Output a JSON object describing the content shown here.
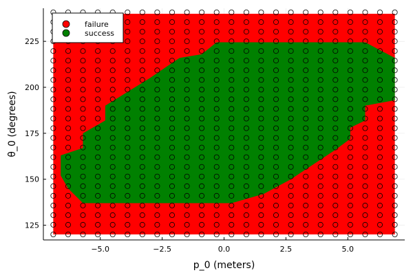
{
  "chart_data": {
    "type": "scatter",
    "title": "",
    "xlabel": "p_0 (meters)",
    "ylabel": "θ_0 (degrees)",
    "xlim": [
      -7.3,
      7.3
    ],
    "ylim": [
      117,
      243
    ],
    "x_ticks": [
      -5.0,
      -2.5,
      0.0,
      2.5,
      5.0
    ],
    "x_tick_labels": [
      "−5.0",
      "−2.5",
      "0.0",
      "2.5",
      "5.0"
    ],
    "y_ticks": [
      125,
      150,
      175,
      200,
      225
    ],
    "y_tick_labels": [
      "125",
      "150",
      "175",
      "200",
      "225"
    ],
    "grid": true,
    "legend_position": "top-left",
    "grid_x": {
      "start": -6.9,
      "step": 0.6,
      "count": 24
    },
    "grid_y": {
      "start": 120,
      "step": 5.25,
      "count": 24
    },
    "series": [
      {
        "name": "failure",
        "color": "#ff0000"
      },
      {
        "name": "success",
        "color": "#008000"
      }
    ],
    "failure_region": {
      "x": [
        -6.9,
        6.9
      ],
      "y": [
        120,
        240
      ]
    },
    "success_region_polygon": [
      [
        -0.3,
        224.5
      ],
      [
        5.7,
        224.5
      ],
      [
        6.9,
        216
      ],
      [
        6.9,
        193
      ],
      [
        5.7,
        190
      ],
      [
        5.7,
        182
      ],
      [
        5.1,
        178
      ],
      [
        5.1,
        172
      ],
      [
        4.5,
        166
      ],
      [
        2.7,
        150
      ],
      [
        1.6,
        142
      ],
      [
        0.3,
        137
      ],
      [
        -5.7,
        137
      ],
      [
        -6.3,
        145
      ],
      [
        -6.6,
        152
      ],
      [
        -6.6,
        163
      ],
      [
        -5.7,
        167
      ],
      [
        -5.7,
        175
      ],
      [
        -4.8,
        182
      ],
      [
        -4.8,
        190
      ],
      [
        -3.0,
        205
      ],
      [
        -1.8,
        216
      ],
      [
        -0.9,
        218
      ]
    ]
  }
}
